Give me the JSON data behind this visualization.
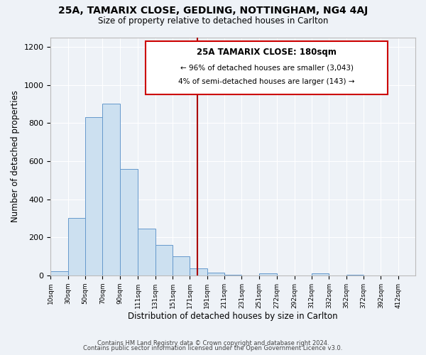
{
  "title_line1": "25A, TAMARIX CLOSE, GEDLING, NOTTINGHAM, NG4 4AJ",
  "title_line2": "Size of property relative to detached houses in Carlton",
  "xlabel": "Distribution of detached houses by size in Carlton",
  "ylabel": "Number of detached properties",
  "bar_left_edges": [
    10,
    30,
    50,
    70,
    90,
    111,
    131,
    151,
    171,
    191,
    211,
    231,
    251,
    272,
    292,
    312,
    332,
    352,
    372,
    392
  ],
  "bar_widths": [
    20,
    20,
    20,
    20,
    21,
    20,
    20,
    20,
    20,
    20,
    20,
    20,
    21,
    20,
    20,
    20,
    20,
    20,
    20,
    20
  ],
  "bar_heights": [
    20,
    300,
    830,
    900,
    560,
    245,
    160,
    100,
    35,
    15,
    5,
    0,
    10,
    0,
    0,
    10,
    0,
    5,
    0,
    0
  ],
  "bar_color": "#cce0f0",
  "bar_edge_color": "#6699cc",
  "tick_labels": [
    "10sqm",
    "30sqm",
    "50sqm",
    "70sqm",
    "90sqm",
    "111sqm",
    "131sqm",
    "151sqm",
    "171sqm",
    "191sqm",
    "211sqm",
    "231sqm",
    "251sqm",
    "272sqm",
    "292sqm",
    "312sqm",
    "332sqm",
    "352sqm",
    "372sqm",
    "392sqm",
    "412sqm"
  ],
  "tick_positions": [
    10,
    30,
    50,
    70,
    90,
    111,
    131,
    151,
    171,
    191,
    211,
    231,
    251,
    272,
    292,
    312,
    332,
    352,
    372,
    392,
    412
  ],
  "ylim": [
    0,
    1250
  ],
  "xlim": [
    10,
    432
  ],
  "yticks": [
    0,
    200,
    400,
    600,
    800,
    1000,
    1200
  ],
  "vline_x": 180,
  "vline_color": "#aa0000",
  "annotation_title": "25A TAMARIX CLOSE: 180sqm",
  "annotation_line2": "← 96% of detached houses are smaller (3,043)",
  "annotation_line3": "4% of semi-detached houses are larger (143) →",
  "footer_line1": "Contains HM Land Registry data © Crown copyright and database right 2024.",
  "footer_line2": "Contains public sector information licensed under the Open Government Licence v3.0.",
  "bg_color": "#eef2f7",
  "plot_bg_color": "#eef2f7",
  "grid_color": "#ffffff"
}
